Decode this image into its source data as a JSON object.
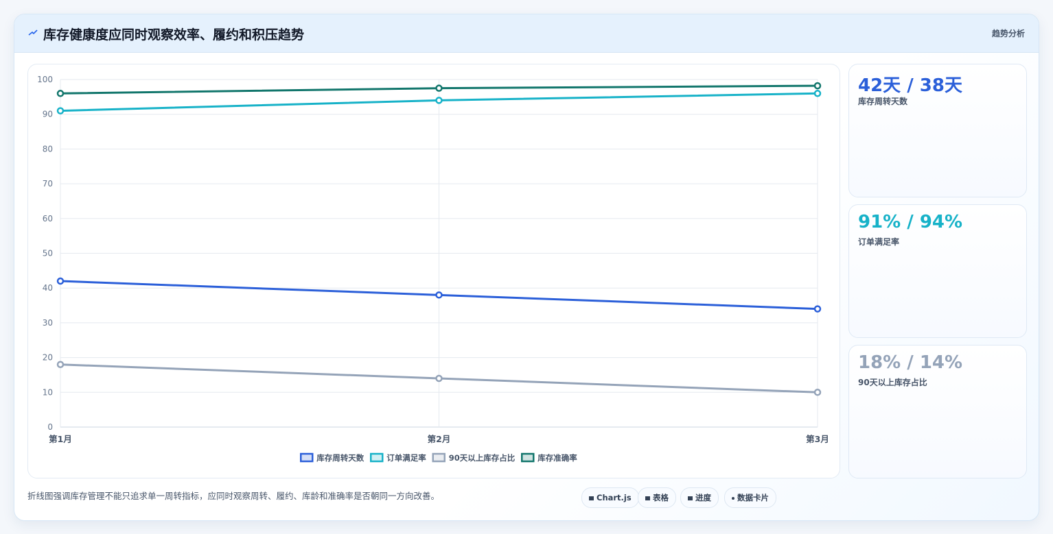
{
  "header": {
    "title": "库存健康度应同时观察效率、履约和积压趋势",
    "tag": "趋势分析"
  },
  "chart_data": {
    "type": "line",
    "categories": [
      "第1月",
      "第2月",
      "第3月"
    ],
    "series": [
      {
        "name": "库存周转天数",
        "color": "#2b5fd9",
        "values": [
          42,
          38,
          34
        ]
      },
      {
        "name": "订单满足率",
        "color": "#17b2c8",
        "values": [
          91,
          94,
          96
        ]
      },
      {
        "name": "90天以上库存占比",
        "color": "#94a3b8",
        "values": [
          18,
          14,
          10
        ]
      },
      {
        "name": "库存准确率",
        "color": "#12766c",
        "values": [
          96,
          97.5,
          98.2
        ]
      }
    ],
    "ylim": [
      0,
      100
    ],
    "yticks": [
      0,
      10,
      20,
      30,
      40,
      50,
      60,
      70,
      80,
      90,
      100
    ],
    "grid": true,
    "legend": "bottom"
  },
  "cards": [
    {
      "value": "42天 / 38天",
      "label": "库存周转天数",
      "color": "#2b5fd9"
    },
    {
      "value": "91% / 94%",
      "label": "订单满足率",
      "color": "#17b2c8"
    },
    {
      "value": "18% / 14%",
      "label": "90天以上库存占比",
      "color": "#94a3b8"
    }
  ],
  "footer": {
    "note": "折线图强调库存管理不能只追求单一周转指标，应同时观察周转、履约、库龄和准确率是否朝同一方向改善。",
    "chips": [
      "Chart.js",
      "表格",
      "进度",
      "数据卡片"
    ]
  }
}
